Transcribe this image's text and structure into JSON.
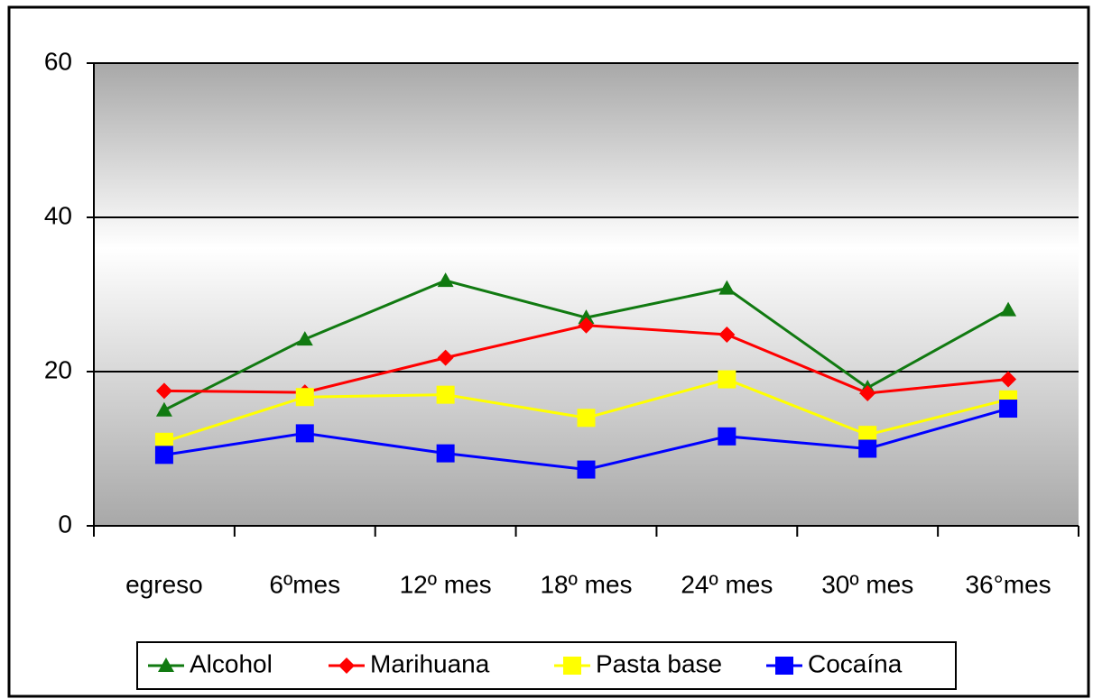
{
  "chart_data": {
    "type": "line",
    "categories": [
      "egreso",
      "6ºmes",
      "12º mes",
      "18º mes",
      "24º mes",
      "30º mes",
      "36°mes"
    ],
    "series": [
      {
        "name": "Alcohol",
        "color": "#117a11",
        "marker": "triangle",
        "values": [
          15,
          24.2,
          31.8,
          27,
          30.8,
          17.9,
          28
        ]
      },
      {
        "name": "Marihuana",
        "color": "#ff0000",
        "marker": "diamond",
        "values": [
          17.5,
          17.3,
          21.8,
          26,
          24.8,
          17.2,
          19
        ]
      },
      {
        "name": "Pasta base",
        "color": "#ffff00",
        "marker": "square",
        "values": [
          10.9,
          16.7,
          17,
          14,
          19,
          11.8,
          16.4
        ]
      },
      {
        "name": "Cocaína",
        "color": "#0000ff",
        "marker": "square",
        "values": [
          9.2,
          12,
          9.4,
          7.3,
          11.6,
          10,
          15.2
        ]
      }
    ],
    "ylim": [
      0,
      60
    ],
    "yticks": [
      0,
      20,
      40,
      60
    ],
    "grid": true,
    "legend": "bottom"
  }
}
